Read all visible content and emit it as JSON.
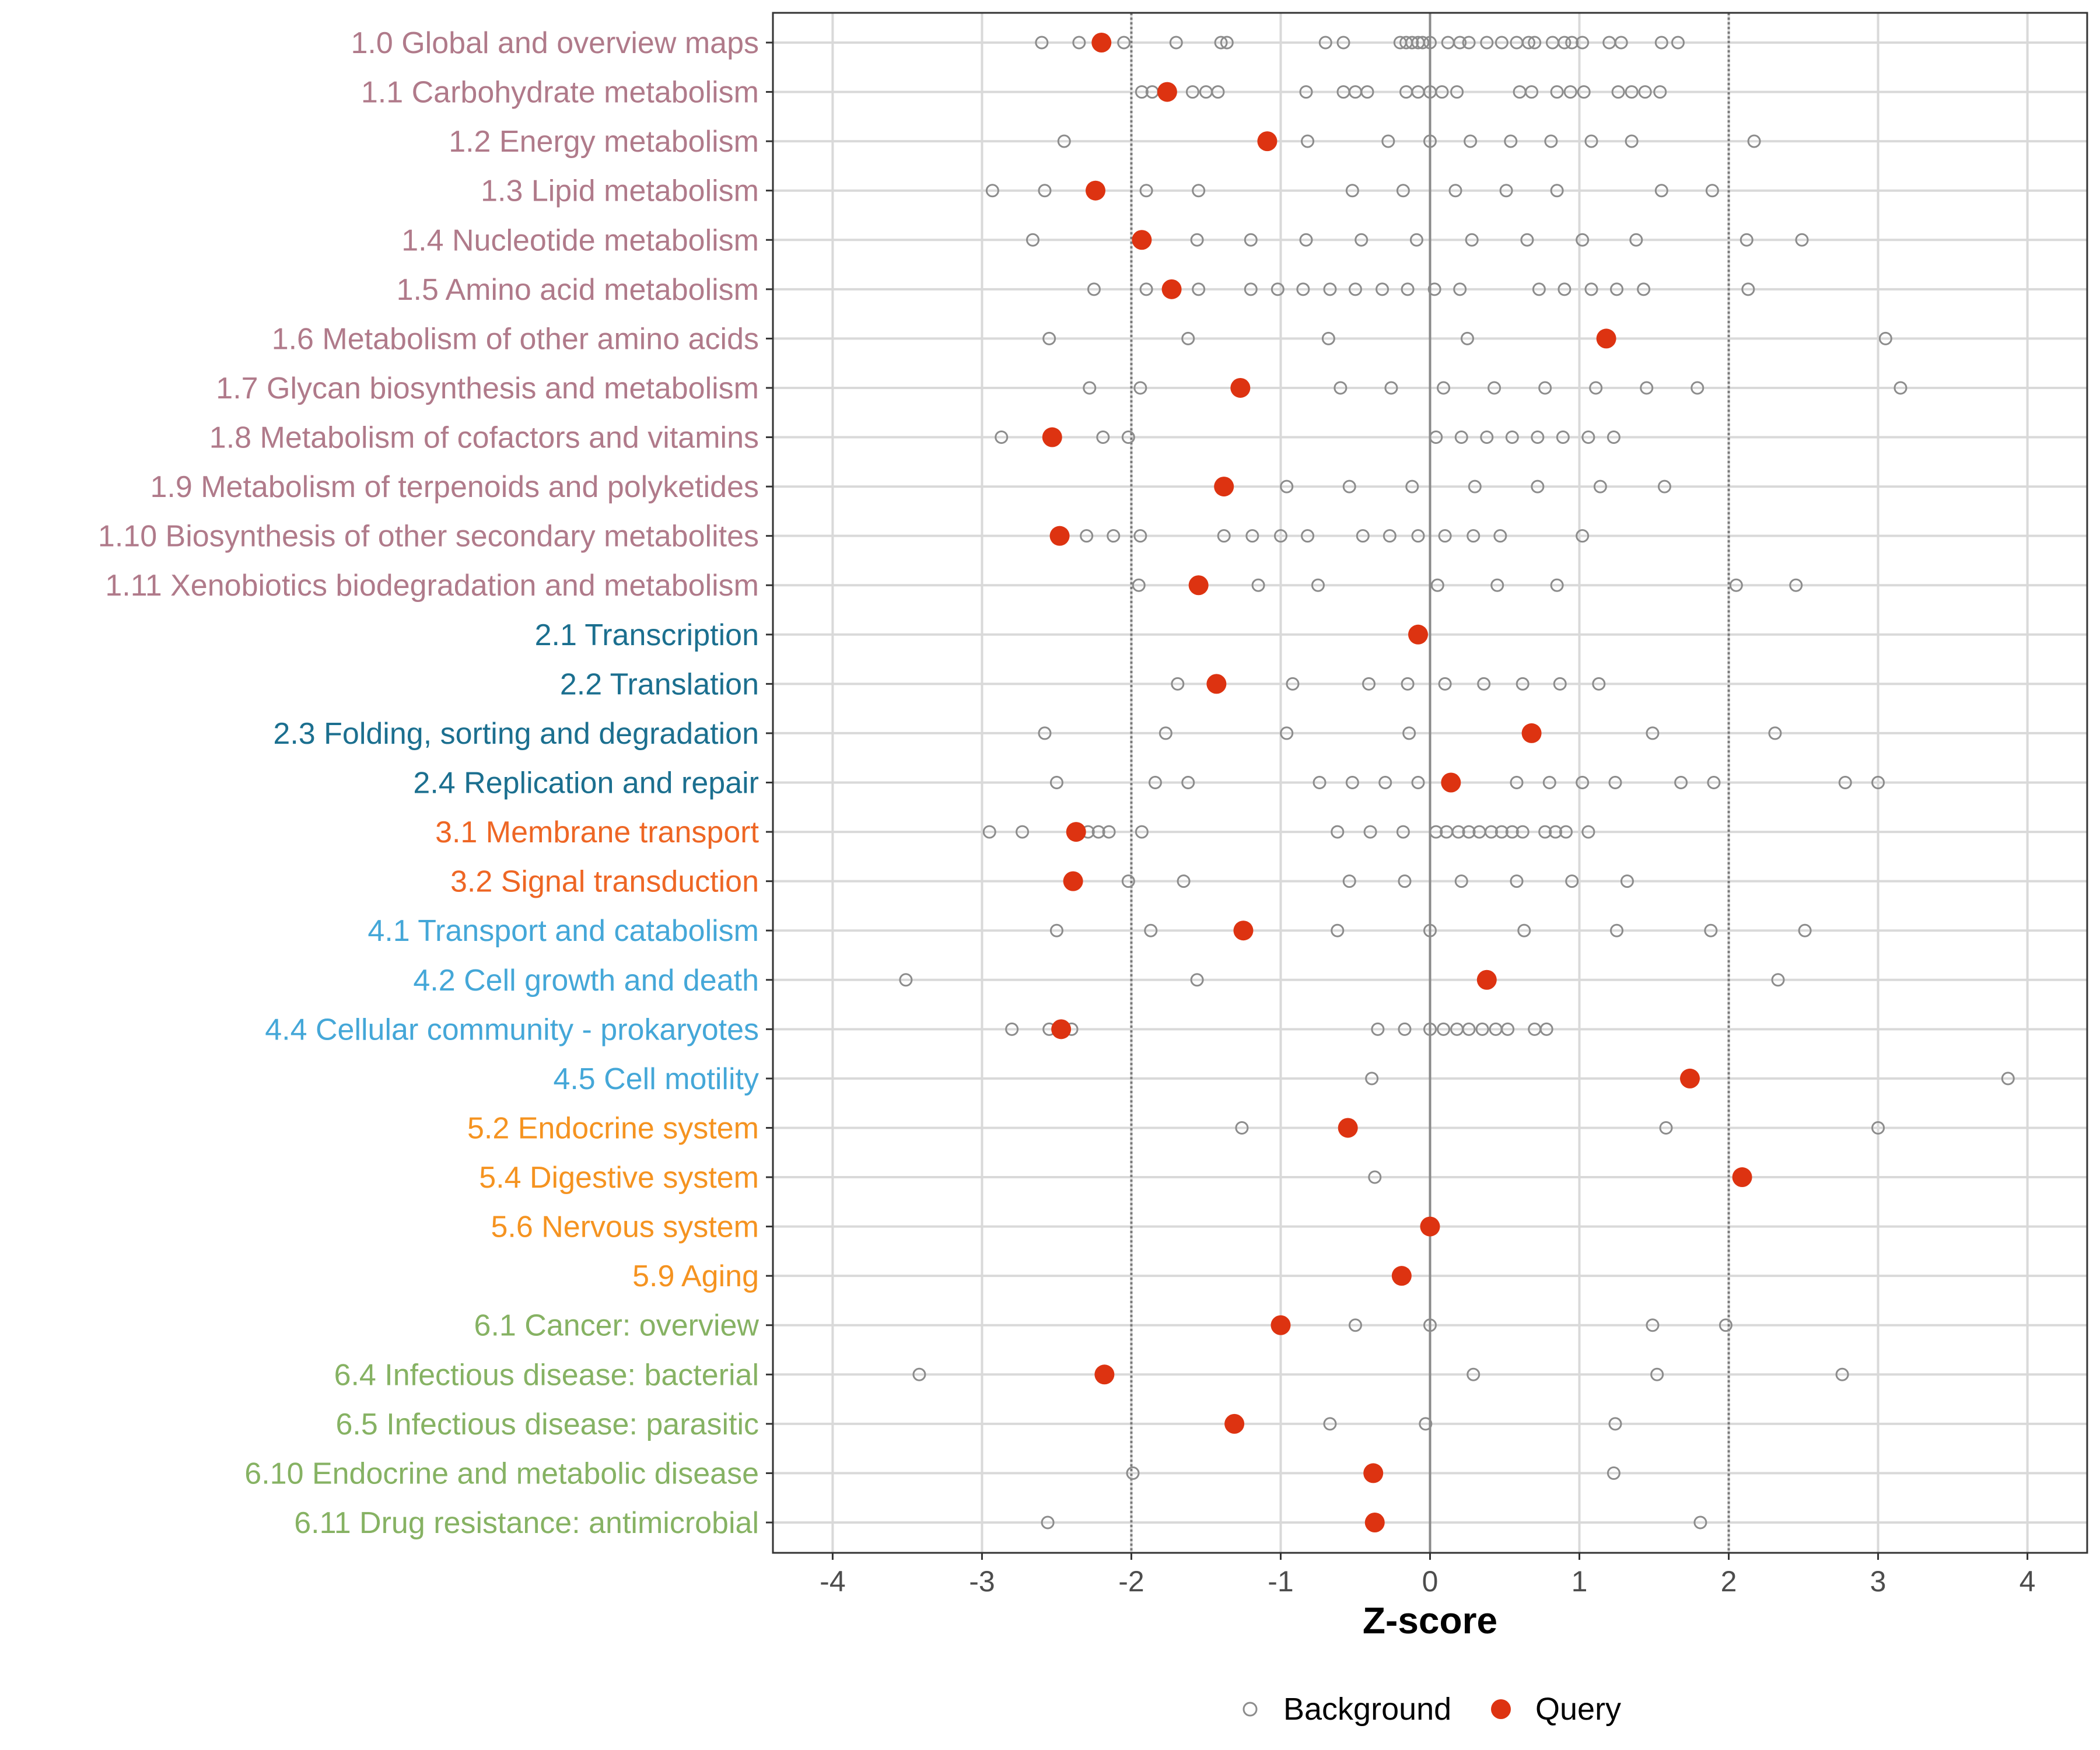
{
  "chart_data": {
    "type": "scatter",
    "title": "",
    "xlabel": "Z-score",
    "ylabel": "",
    "xlim": [
      -4.4,
      4.4
    ],
    "xticks": [
      -4,
      -3,
      -2,
      -1,
      0,
      1,
      2,
      3,
      4
    ],
    "xtick_labels": [
      "-4",
      "-3",
      "-2",
      "-1",
      "0",
      "1",
      "2",
      "3",
      "4"
    ],
    "reference_lines": [
      -2,
      2
    ],
    "zero_line": 0,
    "grid": true,
    "legend": {
      "position": "bottom",
      "entries": [
        {
          "name": "Background",
          "marker": "open-circle",
          "color": "#8c8c8c"
        },
        {
          "name": "Query",
          "marker": "filled-circle",
          "color": "#dd3311"
        }
      ]
    },
    "group_colors": {
      "1": "#b07a8a",
      "2": "#1b6f8f",
      "3": "#ee6624",
      "4": "#44a7d8",
      "5": "#f59320",
      "6": "#86b263"
    },
    "categories": [
      {
        "label": "1.0 Global and overview maps",
        "group": "1",
        "query": -2.2,
        "background": [
          -2.6,
          -2.35,
          -2.05,
          -1.7,
          -1.4,
          -1.36,
          -0.7,
          -0.58,
          -0.2,
          -0.16,
          -0.12,
          -0.08,
          -0.05,
          0.0,
          0.12,
          0.2,
          0.26,
          0.38,
          0.48,
          0.58,
          0.66,
          0.7,
          0.82,
          0.9,
          0.95,
          1.02,
          1.2,
          1.28,
          1.55,
          1.66
        ]
      },
      {
        "label": "1.1 Carbohydrate metabolism",
        "group": "1",
        "query": -1.76,
        "background": [
          -1.93,
          -1.86,
          -1.59,
          -1.5,
          -1.42,
          -0.83,
          -0.58,
          -0.5,
          -0.42,
          -0.16,
          -0.08,
          0.0,
          0.08,
          0.18,
          0.6,
          0.68,
          0.85,
          0.94,
          1.03,
          1.26,
          1.35,
          1.44,
          1.54
        ]
      },
      {
        "label": "1.2 Energy metabolism",
        "group": "1",
        "query": -1.09,
        "background": [
          -2.45,
          -0.82,
          -0.28,
          0.0,
          0.27,
          0.54,
          0.81,
          1.08,
          1.35,
          2.17
        ]
      },
      {
        "label": "1.3 Lipid metabolism",
        "group": "1",
        "query": -2.24,
        "background": [
          -2.93,
          -2.58,
          -1.9,
          -1.55,
          -0.52,
          -0.18,
          0.17,
          0.51,
          0.85,
          1.55,
          1.89
        ]
      },
      {
        "label": "1.4 Nucleotide metabolism",
        "group": "1",
        "query": -1.93,
        "background": [
          -2.66,
          -1.56,
          -1.2,
          -0.83,
          -0.46,
          -0.09,
          0.28,
          0.65,
          1.02,
          1.38,
          2.12,
          2.49
        ]
      },
      {
        "label": "1.5 Amino acid metabolism",
        "group": "1",
        "query": -1.73,
        "background": [
          -2.25,
          -1.9,
          -1.55,
          -1.2,
          -1.02,
          -0.85,
          -0.67,
          -0.5,
          -0.32,
          -0.15,
          0.03,
          0.2,
          0.73,
          0.9,
          1.08,
          1.25,
          1.43,
          2.13
        ]
      },
      {
        "label": "1.6 Metabolism of other amino acids",
        "group": "1",
        "query": 1.18,
        "background": [
          -2.55,
          -1.62,
          -0.68,
          0.25,
          3.05
        ]
      },
      {
        "label": "1.7 Glycan biosynthesis and metabolism",
        "group": "1",
        "query": -1.27,
        "background": [
          -2.28,
          -1.94,
          -0.6,
          -0.26,
          0.09,
          0.43,
          0.77,
          1.11,
          1.45,
          1.79,
          3.15
        ]
      },
      {
        "label": "1.8 Metabolism of cofactors and vitamins",
        "group": "1",
        "query": -2.53,
        "background": [
          -2.87,
          -2.19,
          -2.02,
          0.04,
          0.21,
          0.38,
          0.55,
          0.72,
          0.89,
          1.06,
          1.23
        ]
      },
      {
        "label": "1.9 Metabolism of terpenoids and polyketides",
        "group": "1",
        "query": -1.38,
        "background": [
          -0.96,
          -0.54,
          -0.12,
          0.3,
          0.72,
          1.14,
          1.57
        ]
      },
      {
        "label": "1.10 Biosynthesis of other secondary metabolites",
        "group": "1",
        "query": -2.48,
        "background": [
          -2.3,
          -2.12,
          -1.94,
          -1.38,
          -1.19,
          -1.0,
          -0.82,
          -0.45,
          -0.27,
          -0.08,
          0.1,
          0.29,
          0.47,
          1.02
        ]
      },
      {
        "label": "1.11 Xenobiotics biodegradation and metabolism",
        "group": "1",
        "query": -1.55,
        "background": [
          -1.95,
          -1.15,
          -0.75,
          0.05,
          0.45,
          0.85,
          2.05,
          2.45
        ]
      },
      {
        "label": "2.1 Transcription",
        "group": "2",
        "query": -0.08,
        "background": []
      },
      {
        "label": "2.2 Translation",
        "group": "2",
        "query": -1.43,
        "background": [
          -1.69,
          -0.92,
          -0.41,
          -0.15,
          0.1,
          0.36,
          0.62,
          0.87,
          1.13
        ]
      },
      {
        "label": "2.3 Folding, sorting and degradation",
        "group": "2",
        "query": 0.68,
        "background": [
          -2.58,
          -1.77,
          -0.96,
          -0.14,
          1.49,
          2.31
        ]
      },
      {
        "label": "2.4 Replication and repair",
        "group": "2",
        "query": 0.14,
        "background": [
          -2.5,
          -1.84,
          -1.62,
          -0.74,
          -0.52,
          -0.3,
          -0.08,
          0.58,
          0.8,
          1.02,
          1.24,
          1.68,
          1.9,
          2.78,
          3.0
        ]
      },
      {
        "label": "3.1 Membrane transport",
        "group": "3",
        "query": -2.37,
        "background": [
          -2.95,
          -2.73,
          -2.29,
          -2.22,
          -2.15,
          -1.93,
          -0.62,
          -0.4,
          -0.18,
          0.04,
          0.11,
          0.19,
          0.26,
          0.33,
          0.41,
          0.48,
          0.55,
          0.62,
          0.77,
          0.84,
          0.91,
          1.06
        ]
      },
      {
        "label": "3.2 Signal transduction",
        "group": "3",
        "query": -2.39,
        "background": [
          -2.02,
          -1.65,
          -0.54,
          -0.17,
          0.21,
          0.58,
          0.95,
          1.32
        ]
      },
      {
        "label": "4.1 Transport and catabolism",
        "group": "4",
        "query": -1.25,
        "background": [
          -2.5,
          -1.87,
          -0.62,
          0.0,
          0.63,
          1.25,
          1.88,
          2.51
        ]
      },
      {
        "label": "4.2 Cell growth and death",
        "group": "4",
        "query": 0.38,
        "background": [
          -3.51,
          -1.56,
          2.33
        ]
      },
      {
        "label": "4.4 Cellular community - prokaryotes",
        "group": "4",
        "query": -2.47,
        "background": [
          -2.8,
          -2.55,
          -2.4,
          -0.35,
          -0.17,
          0.0,
          0.09,
          0.18,
          0.26,
          0.35,
          0.44,
          0.52,
          0.7,
          0.78
        ]
      },
      {
        "label": "4.5 Cell motility",
        "group": "4",
        "query": 1.74,
        "background": [
          -0.39,
          3.87
        ]
      },
      {
        "label": "5.2 Endocrine system",
        "group": "5",
        "query": -0.55,
        "background": [
          -1.26,
          1.58,
          3.0
        ]
      },
      {
        "label": "5.4 Digestive system",
        "group": "5",
        "query": 2.09,
        "background": [
          -0.37
        ]
      },
      {
        "label": "5.6 Nervous system",
        "group": "5",
        "query": 0.0,
        "background": []
      },
      {
        "label": "5.9 Aging",
        "group": "5",
        "query": -0.19,
        "background": []
      },
      {
        "label": "6.1 Cancer: overview",
        "group": "6",
        "query": -1.0,
        "background": [
          -0.5,
          0.0,
          1.49,
          1.98
        ]
      },
      {
        "label": "6.4 Infectious disease: bacterial",
        "group": "6",
        "query": -2.18,
        "background": [
          -3.42,
          0.29,
          1.52,
          2.76
        ]
      },
      {
        "label": "6.5 Infectious disease: parasitic",
        "group": "6",
        "query": -1.31,
        "background": [
          -0.67,
          -0.03,
          1.24
        ]
      },
      {
        "label": "6.10 Endocrine and metabolic disease",
        "group": "6",
        "query": -0.38,
        "background": [
          -1.99,
          1.23
        ]
      },
      {
        "label": "6.11 Drug resistance: antimicrobial",
        "group": "6",
        "query": -0.37,
        "background": [
          -2.56,
          1.81
        ]
      }
    ]
  }
}
